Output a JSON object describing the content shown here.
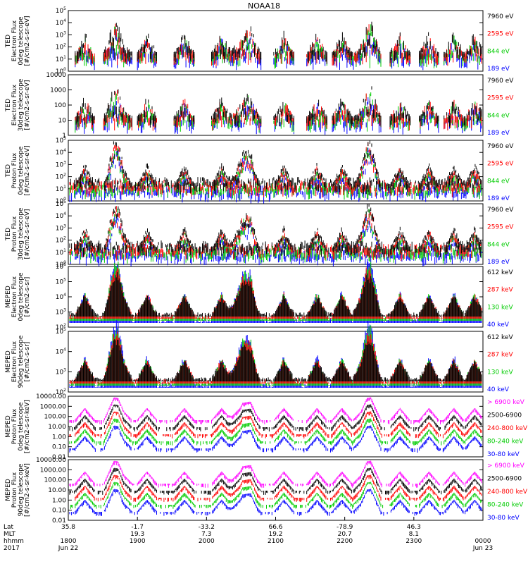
{
  "chart_data": {
    "type": "line",
    "title": "NOAA18",
    "x_axis": {
      "rows": [
        {
          "label": "Lat",
          "values": [
            "35.8",
            "-1.7",
            "-33.2",
            "66.6",
            "-78.9",
            "46.3",
            ""
          ]
        },
        {
          "label": "MLT",
          "values": [
            "",
            "19.3",
            "7.3",
            "19.2",
            "20.7",
            "8.1",
            ""
          ]
        },
        {
          "label": "hhmm",
          "values": [
            "1800",
            "1900",
            "2000",
            "2100",
            "2200",
            "2300",
            "0000"
          ]
        },
        {
          "label": "2017",
          "values": [
            "Jun 22",
            "",
            "",
            "",
            "",
            "",
            "Jun 23"
          ]
        }
      ]
    },
    "panels": [
      {
        "instrument": "TED",
        "ylabel_lines": [
          "TED",
          "Electron Flux",
          "0deg telescope",
          "[#/cm2-s-sr-eV]"
        ],
        "y_scale": "log",
        "y_ticks": [
          "10^0",
          "10^1",
          "10^2",
          "10^3",
          "10^4",
          "10^5"
        ],
        "channels": [
          {
            "label": "7960 eV",
            "color": "#000000"
          },
          {
            "label": "2595 eV",
            "color": "#ff0000"
          },
          {
            "label": "844 eV",
            "color": "#00cc00"
          },
          {
            "label": "189 eV",
            "color": "#0000ff"
          }
        ]
      },
      {
        "instrument": "TED",
        "ylabel_lines": [
          "TED",
          "Electron Flux",
          "30deg telescope",
          "[#/cm2-s-sr-eV]"
        ],
        "y_scale": "log",
        "y_ticks": [
          "1",
          "10",
          "100",
          "1000",
          "10000"
        ],
        "channels": [
          {
            "label": "7960 eV",
            "color": "#000000"
          },
          {
            "label": "2595 eV",
            "color": "#ff0000"
          },
          {
            "label": "844 eV",
            "color": "#00cc00"
          },
          {
            "label": "189 eV",
            "color": "#0000ff"
          }
        ]
      },
      {
        "instrument": "TED",
        "ylabel_lines": [
          "TED",
          "Proton Flux",
          "0deg telescope",
          "[#/cm2-s-sr-eV]"
        ],
        "y_scale": "log",
        "y_ticks": [
          "10^0",
          "10^1",
          "10^2",
          "10^3",
          "10^4",
          "10^5"
        ],
        "channels": [
          {
            "label": "7960 eV",
            "color": "#000000"
          },
          {
            "label": "2595 eV",
            "color": "#ff0000"
          },
          {
            "label": "844 eV",
            "color": "#00cc00"
          },
          {
            "label": "189 eV",
            "color": "#0000ff"
          }
        ]
      },
      {
        "instrument": "TED",
        "ylabel_lines": [
          "TED",
          "Proton Flux",
          "30deg telescope",
          "[#/cm2-s-sr-eV]"
        ],
        "y_scale": "log",
        "y_ticks": [
          "10^0",
          "10^1",
          "10^2",
          "10^3",
          "10^4",
          "10^5"
        ],
        "channels": [
          {
            "label": "7960 eV",
            "color": "#000000"
          },
          {
            "label": "2595 eV",
            "color": "#ff0000"
          },
          {
            "label": "844 eV",
            "color": "#00cc00"
          },
          {
            "label": "189 eV",
            "color": "#0000ff"
          }
        ]
      },
      {
        "instrument": "MEPED",
        "ylabel_lines": [
          "MEPED",
          "Electron Flux",
          "0deg telescope",
          "[#/cm2-s-sr]"
        ],
        "y_scale": "log",
        "y_ticks": [
          "10^2",
          "10^3",
          "10^4",
          "10^5",
          "10^6"
        ],
        "channels": [
          {
            "label": "612 keV",
            "color": "#000000"
          },
          {
            "label": "287 keV",
            "color": "#ff0000"
          },
          {
            "label": "130 keV",
            "color": "#00cc00"
          },
          {
            "label": "40 keV",
            "color": "#0000ff"
          }
        ]
      },
      {
        "instrument": "MEPED",
        "ylabel_lines": [
          "MEPED",
          "Electron Flux",
          "90deg telescope",
          "[#/cm2-s-sr]"
        ],
        "y_scale": "log",
        "y_ticks": [
          "10^2",
          "10^3",
          "10^4",
          "10^5"
        ],
        "channels": [
          {
            "label": "612 keV",
            "color": "#000000"
          },
          {
            "label": "287 keV",
            "color": "#ff0000"
          },
          {
            "label": "130 keV",
            "color": "#00cc00"
          },
          {
            "label": "40 keV",
            "color": "#0000ff"
          }
        ]
      },
      {
        "instrument": "MEPED",
        "ylabel_lines": [
          "MEPED",
          "Proton Flux",
          "0deg telescope",
          "[#/cm2-s-sr-keV]"
        ],
        "y_scale": "log",
        "y_ticks": [
          "0.01",
          "0.10",
          "1.00",
          "10.00",
          "100.00",
          "1000.00",
          "10000.00"
        ],
        "channels": [
          {
            "label": "> 6900 keV",
            "color": "#ff00ff"
          },
          {
            "label": "2500-6900",
            "color": "#000000"
          },
          {
            "label": "240-800 keV",
            "color": "#ff0000"
          },
          {
            "label": "80-240 keV",
            "color": "#00cc00"
          },
          {
            "label": "30-80 keV",
            "color": "#0000ff"
          }
        ]
      },
      {
        "instrument": "MEPED",
        "ylabel_lines": [
          "MEPED",
          "Proton Flux",
          "90deg telescope",
          "[#/cm2-s-sr-keV]"
        ],
        "y_scale": "log",
        "y_ticks": [
          "0.01",
          "0.10",
          "1.00",
          "10.00",
          "100.00",
          "1000.00",
          "10000.00"
        ],
        "channels": [
          {
            "label": "> 6900 keV",
            "color": "#ff00ff"
          },
          {
            "label": "2500-6900",
            "color": "#000000"
          },
          {
            "label": "240-800 keV",
            "color": "#ff0000"
          },
          {
            "label": "80-240 keV",
            "color": "#00cc00"
          },
          {
            "label": "30-80 keV",
            "color": "#0000ff"
          }
        ]
      }
    ]
  }
}
